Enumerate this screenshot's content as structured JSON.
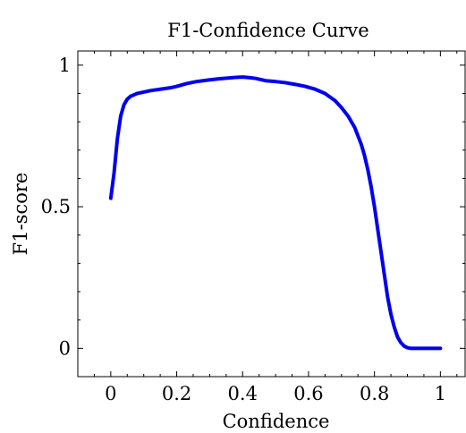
{
  "chart_data": {
    "type": "line",
    "title": "F1-Confidence Curve",
    "xlabel": "Confidence",
    "ylabel": "F1-score",
    "xlim": [
      -0.1,
      1.075
    ],
    "ylim": [
      -0.1,
      1.05
    ],
    "xticks": [
      0,
      0.2,
      0.4,
      0.6,
      0.8,
      1
    ],
    "xtick_labels": [
      "0",
      "0.2",
      "0.4",
      "0.6",
      "0.8",
      "1"
    ],
    "yticks": [
      0,
      0.5,
      1
    ],
    "ytick_labels": [
      "0",
      "0.5",
      "1"
    ],
    "grid": false,
    "series": [
      {
        "color": "#0000ee",
        "x": [
          0.0,
          0.01,
          0.02,
          0.03,
          0.04,
          0.05,
          0.06,
          0.07,
          0.08,
          0.1,
          0.12,
          0.15,
          0.18,
          0.2,
          0.23,
          0.26,
          0.3,
          0.33,
          0.36,
          0.38,
          0.4,
          0.42,
          0.44,
          0.47,
          0.5,
          0.53,
          0.56,
          0.59,
          0.62,
          0.65,
          0.68,
          0.7,
          0.72,
          0.74,
          0.76,
          0.77,
          0.78,
          0.79,
          0.8,
          0.81,
          0.82,
          0.83,
          0.84,
          0.85,
          0.86,
          0.87,
          0.88,
          0.89,
          0.9,
          0.91,
          0.92,
          0.93,
          0.95,
          0.97,
          1.0
        ],
        "y": [
          0.53,
          0.62,
          0.74,
          0.82,
          0.86,
          0.88,
          0.89,
          0.895,
          0.9,
          0.905,
          0.91,
          0.915,
          0.92,
          0.925,
          0.935,
          0.942,
          0.948,
          0.952,
          0.955,
          0.957,
          0.958,
          0.956,
          0.953,
          0.945,
          0.942,
          0.938,
          0.932,
          0.925,
          0.915,
          0.9,
          0.875,
          0.85,
          0.82,
          0.78,
          0.72,
          0.68,
          0.63,
          0.57,
          0.5,
          0.42,
          0.34,
          0.26,
          0.18,
          0.12,
          0.075,
          0.04,
          0.02,
          0.008,
          0.002,
          0.0,
          0.0,
          0.0,
          0.0,
          0.0,
          0.0
        ]
      }
    ]
  }
}
